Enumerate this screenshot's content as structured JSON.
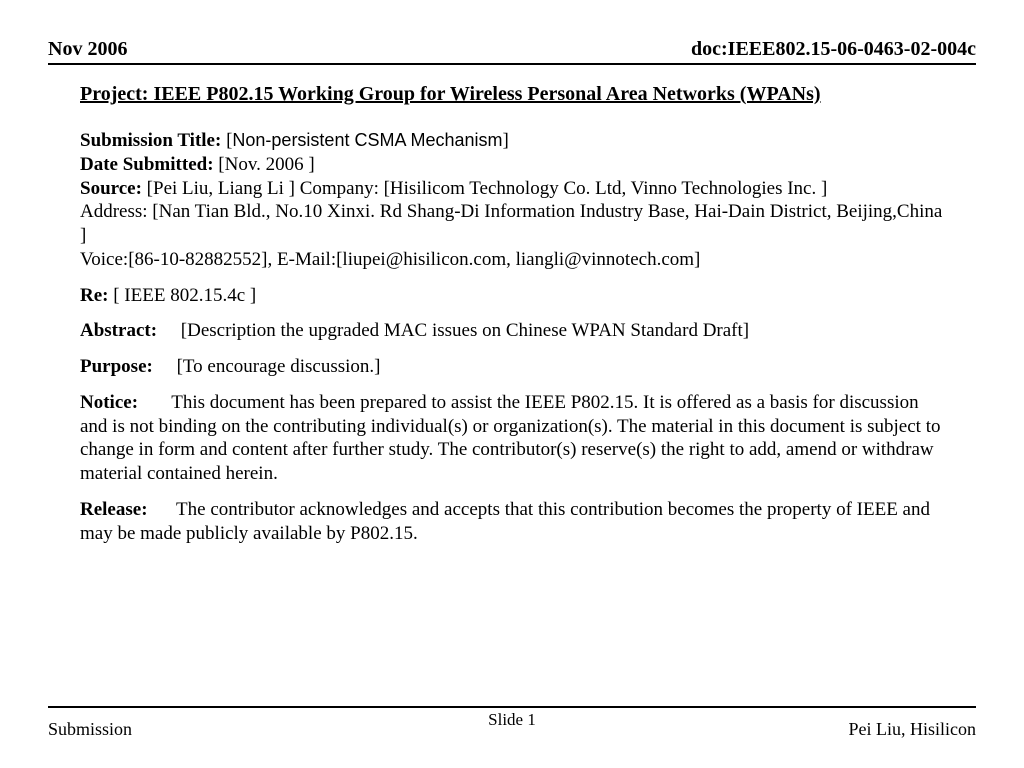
{
  "header": {
    "left": "Nov  2006",
    "right": "doc:IEEE802.15-06-0463-02-004c"
  },
  "project_title": "Project: IEEE P802.15 Working Group for Wireless Personal Area Networks (WPANs)",
  "submission": {
    "title_label": "Submission Title: ",
    "title_bracket_open": "[",
    "title_value": "Non-persistent CSMA Mechanism",
    "title_bracket_close": "]",
    "date_label": "Date Submitted:",
    "date_value": "  [Nov. 2006 ]",
    "source_label": "Source:",
    "source_value": "  [Pei Liu, Liang Li ]    Company: [Hisilicom Technology Co. Ltd,  Vinno Technologies Inc. ]",
    "address": "Address: [Nan Tian Bld., No.10 Xinxi. Rd Shang-Di Information Industry Base, Hai-Dain District, Beijing,China ]",
    "voice": "Voice:[86-10-82882552], E-Mail:[liupei@hisilicon.com, liangli@vinnotech.com]"
  },
  "re": {
    "label": "Re:",
    "value": " [ IEEE 802.15.4c ]"
  },
  "abstract": {
    "label": "Abstract:",
    "value": "     [Description the upgraded MAC issues on   Chinese WPAN Standard Draft]"
  },
  "purpose": {
    "label": "Purpose:",
    "value": "     [To encourage discussion.]"
  },
  "notice": {
    "label": "Notice:",
    "value": "       This document has been prepared to assist the IEEE P802.15.  It is offered as a basis for discussion and is not binding on the contributing individual(s) or organization(s). The material in this document is subject to change in form and content after further study. The contributor(s) reserve(s) the right to add, amend or withdraw material contained herein."
  },
  "release": {
    "label": "Release:",
    "value": "      The contributor acknowledges and accepts that this contribution becomes the property of IEEE and may be made publicly available by P802.15."
  },
  "footer": {
    "left": "Submission",
    "center": "Slide 1",
    "right": "Pei Liu, Hisilicon"
  }
}
